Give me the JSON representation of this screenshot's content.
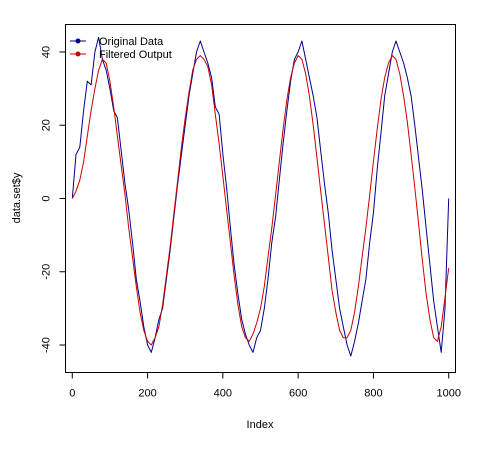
{
  "chart_data": {
    "type": "line",
    "title": "",
    "xlabel": "Index",
    "ylabel": "data.set$y",
    "xlim": [
      -18,
      1018
    ],
    "ylim": [
      -47.5,
      47.5
    ],
    "x_ticks": [
      0,
      200,
      400,
      600,
      800,
      1000
    ],
    "x_tick_labels": [
      "0",
      "200",
      "400",
      "600",
      "800",
      "1000"
    ],
    "y_ticks": [
      -40,
      -20,
      0,
      20,
      40
    ],
    "y_tick_labels": [
      "-40",
      "-20",
      "0",
      "20",
      "40"
    ],
    "grid": false,
    "legend_position": "top-left",
    "series": [
      {
        "name": "Original Data",
        "color": "#00008b",
        "marker": "filled-circle",
        "x": [
          0,
          10,
          20,
          30,
          40,
          50,
          60,
          70,
          80,
          90,
          100,
          110,
          120,
          130,
          140,
          150,
          160,
          170,
          180,
          190,
          200,
          210,
          220,
          230,
          240,
          250,
          260,
          270,
          280,
          290,
          300,
          310,
          320,
          330,
          340,
          350,
          360,
          370,
          380,
          390,
          400,
          410,
          420,
          430,
          440,
          450,
          460,
          470,
          480,
          490,
          500,
          510,
          520,
          530,
          540,
          550,
          560,
          570,
          580,
          590,
          600,
          610,
          620,
          630,
          640,
          650,
          660,
          670,
          680,
          690,
          700,
          710,
          720,
          730,
          740,
          750,
          760,
          770,
          780,
          790,
          800,
          810,
          820,
          830,
          840,
          850,
          860,
          870,
          880,
          890,
          900,
          910,
          920,
          930,
          940,
          950,
          960,
          970,
          980,
          990,
          1000
        ],
        "y": [
          0,
          12,
          14,
          24,
          32,
          31,
          40,
          44,
          38,
          35,
          30,
          24,
          22,
          13,
          4,
          -3,
          -12,
          -22,
          -28,
          -35,
          -40,
          -42,
          -38,
          -33,
          -30,
          -22,
          -14,
          -5,
          4,
          12,
          20,
          28,
          34,
          40,
          43,
          40,
          37,
          33,
          25,
          23,
          12,
          3,
          -8,
          -18,
          -26,
          -33,
          -37,
          -40,
          -42,
          -38,
          -36,
          -30,
          -22,
          -12,
          -5,
          5,
          15,
          24,
          32,
          38,
          40,
          43,
          38,
          33,
          28,
          22,
          13,
          4,
          -4,
          -14,
          -22,
          -30,
          -35,
          -40,
          -43,
          -39,
          -34,
          -28,
          -22,
          -12,
          -4,
          8,
          18,
          28,
          34,
          40,
          43,
          40,
          37,
          33,
          28,
          20,
          11,
          2,
          -8,
          -18,
          -28,
          -35,
          -42,
          -30,
          0
        ]
      },
      {
        "name": "Filtered Output",
        "color": "#cc0000",
        "marker": "filled-circle",
        "x": [
          0,
          10,
          20,
          30,
          40,
          50,
          60,
          70,
          80,
          90,
          100,
          110,
          120,
          130,
          140,
          150,
          160,
          170,
          180,
          190,
          200,
          210,
          220,
          230,
          240,
          250,
          260,
          270,
          280,
          290,
          300,
          310,
          320,
          330,
          340,
          350,
          360,
          370,
          380,
          390,
          400,
          410,
          420,
          430,
          440,
          450,
          460,
          470,
          480,
          490,
          500,
          510,
          520,
          530,
          540,
          550,
          560,
          570,
          580,
          590,
          600,
          610,
          620,
          630,
          640,
          650,
          660,
          670,
          680,
          690,
          700,
          710,
          720,
          730,
          740,
          750,
          760,
          770,
          780,
          790,
          800,
          810,
          820,
          830,
          840,
          850,
          860,
          870,
          880,
          890,
          900,
          910,
          920,
          930,
          940,
          950,
          960,
          970,
          980,
          990,
          1000
        ],
        "y": [
          0,
          2,
          5,
          10,
          17,
          24,
          30,
          35,
          38,
          37,
          32,
          25,
          17,
          9,
          1,
          -8,
          -16,
          -24,
          -31,
          -36,
          -39,
          -40,
          -38,
          -35,
          -29,
          -21,
          -13,
          -4,
          5,
          14,
          22,
          29,
          35,
          38,
          39,
          38,
          36,
          31,
          23,
          15,
          6,
          -3,
          -12,
          -21,
          -29,
          -35,
          -38,
          -39,
          -37,
          -34,
          -30,
          -24,
          -16,
          -8,
          1,
          10,
          19,
          27,
          33,
          37,
          39,
          38,
          34,
          28,
          20,
          11,
          2,
          -7,
          -16,
          -25,
          -31,
          -36,
          -38,
          -38,
          -36,
          -31,
          -24,
          -16,
          -8,
          1,
          10,
          19,
          27,
          33,
          37,
          39,
          38,
          34,
          28,
          21,
          12,
          3,
          -7,
          -17,
          -26,
          -33,
          -38,
          -39,
          -35,
          -27,
          -19
        ]
      }
    ]
  }
}
